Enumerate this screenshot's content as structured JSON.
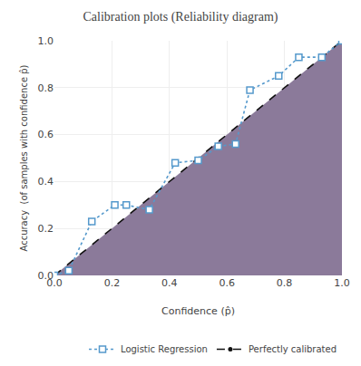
{
  "chart_data": {
    "type": "line",
    "title": "Calibration plots (Reliability diagram)",
    "xlabel": "Confidence (p̂)",
    "ylabel": "Accuracy  (of samples with confidence p̂)",
    "series": [
      {
        "type": "area",
        "color": "#8b7a9a",
        "x": [
          0.0,
          1.0
        ],
        "values": [
          0.0,
          1.0
        ]
      },
      {
        "name": "Perfectly calibrated",
        "type": "line",
        "color": "#111111",
        "line_style": "dashed",
        "marker": "dot",
        "x": [
          0.0,
          1.0
        ],
        "values": [
          0.0,
          1.0
        ]
      },
      {
        "name": "Logistic Regression",
        "type": "line",
        "color": "#5599cc",
        "line_style": "dotted",
        "marker": "square",
        "colors": [
          "#b8d4ec",
          "#e8b4ae"
        ],
        "x": [
          0.0,
          0.05,
          0.13,
          0.21,
          0.25,
          0.33,
          0.42,
          0.5,
          0.57,
          0.63,
          0.68,
          0.78,
          0.85,
          0.93,
          1.0
        ],
        "values": [
          0.0,
          0.02,
          0.23,
          0.3,
          0.3,
          0.28,
          0.48,
          0.49,
          0.55,
          0.56,
          0.79,
          0.85,
          0.93,
          0.93,
          1.0
        ]
      }
    ],
    "xlim": [
      0.0,
      1.0
    ],
    "ylim": [
      0.0,
      1.0
    ],
    "xticks": [
      {
        "value": 0.0,
        "label": "0.0"
      },
      0.2,
      0.4,
      0.6,
      0.8,
      {
        "value": 1.0,
        "label": "1.0"
      }
    ],
    "yticks": [
      {
        "value": 0.0,
        "label": "0.0"
      },
      0.2,
      0.4,
      0.6,
      0.8,
      {
        "value": 1.0,
        "label": "1.0"
      }
    ],
    "grid": true,
    "legend": "lower right"
  }
}
